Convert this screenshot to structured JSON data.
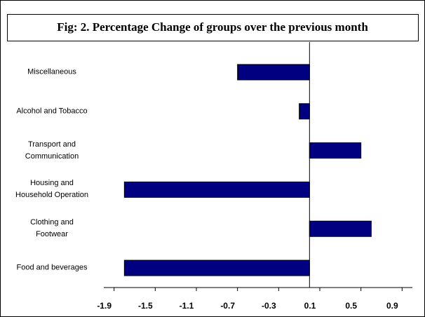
{
  "chart_data": {
    "type": "barh",
    "title": "Fig: 2. Percentage Change of groups over the previous month",
    "categories": [
      "Miscellaneous",
      "Alcohol and Tobacco",
      "Transport and\nCommunication",
      "Housing and\nHousehold Operation",
      "Clothing and\nFootwear",
      "Food and beverages"
    ],
    "values": [
      -0.7,
      -0.1,
      0.5,
      -1.8,
      0.6,
      -1.8
    ],
    "color": "#000080",
    "xlim": [
      -2.0,
      1.0
    ],
    "xticks": [
      -1.9,
      -1.5,
      -1.1,
      -0.7,
      -0.3,
      0.1,
      0.5,
      0.9
    ]
  }
}
